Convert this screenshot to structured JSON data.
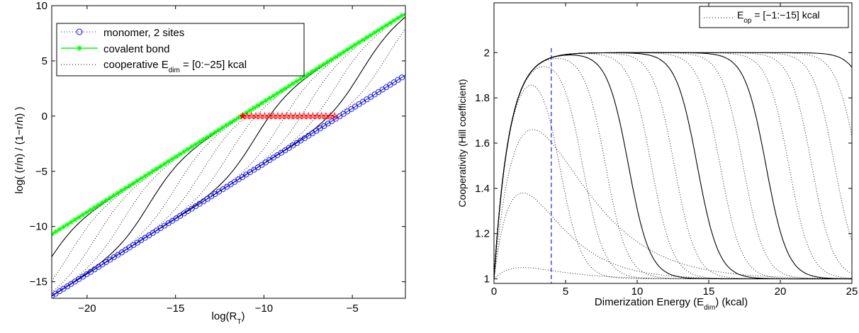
{
  "chart_data": [
    {
      "type": "line",
      "title": "",
      "xlabel_main": "log(R",
      "xlabel_sub": "T",
      "xlabel_close": ")",
      "ylabel": "log( (r/n) / (1−r/n) )",
      "xlim": [
        -22,
        -2
      ],
      "ylim": [
        -16.5,
        10
      ],
      "xticks": [
        -20,
        -15,
        -10,
        -5
      ],
      "xtick_labels": [
        "−20",
        "−15",
        "−10",
        "−5"
      ],
      "yticks": [
        10,
        5,
        0,
        -5,
        -10,
        -15
      ],
      "ytick_labels": [
        "10",
        "5",
        "0",
        "−5",
        "−10",
        "−15"
      ],
      "grid": false,
      "legend_placement": "top-left",
      "legend": [
        {
          "label": "monomer, 2 sites",
          "color": "#0000ff",
          "style": "dotted-circle"
        },
        {
          "label": "covalent bond",
          "color": "#00ff00",
          "style": "solid-star"
        },
        {
          "label_main": "cooperative E",
          "label_sub": "dim",
          "label_rest": " = [0:−25] kcal",
          "color": "#000000",
          "style": "dotted"
        }
      ],
      "series": [
        {
          "name": "monomer, 2 sites",
          "color": "#0000ff",
          "x_range": [
            -22,
            -2
          ],
          "intercept": -16.3,
          "slope": 1
        },
        {
          "name": "covalent bond",
          "color": "#00ff00",
          "x_range": [
            -22,
            -2
          ],
          "intercept": -10.7,
          "slope": 1
        }
      ],
      "cooperative_midpoints": [
        -22.5,
        -21,
        -19.5,
        -18,
        -16.5,
        -15,
        -13.5,
        -12,
        -10.5,
        -9,
        -7.5,
        -6,
        -4.5,
        -3
      ],
      "cooperative_solid_midpoints": [
        -22.5,
        -16.5,
        -10.5,
        -4.5
      ],
      "red_stars": {
        "color": "#ff0000",
        "x_from": -11.2,
        "x_to": -6,
        "y": 0,
        "count": 22
      }
    },
    {
      "type": "line",
      "title": "",
      "xlabel_main": "Dimerization Energy (E",
      "xlabel_sub": "dim",
      "xlabel_close": ") (kcal)",
      "ylabel": "Cooperativity (Hill coefficient)",
      "xlim": [
        0,
        25
      ],
      "ylim": [
        0.98,
        2.22
      ],
      "xticks": [
        0,
        5,
        10,
        15,
        20,
        25
      ],
      "xtick_labels": [
        "0",
        "5",
        "10",
        "15",
        "20",
        "25"
      ],
      "yticks": [
        1,
        1.2,
        1.4,
        1.6,
        1.8,
        2
      ],
      "ytick_labels": [
        "1",
        "1.2",
        "1.4",
        "1.6",
        "1.8",
        "2"
      ],
      "grid": false,
      "legend_placement": "top-right",
      "legend": [
        {
          "label_main": "E",
          "label_sub": "op",
          "label_rest": " = [−1:−15] kcal",
          "color": "#000000",
          "style": "dotted"
        }
      ],
      "vline": {
        "x": 4,
        "color": "#0000ff",
        "style": "dashed"
      },
      "peaked_curves": [
        {
          "peak_x": 2.0,
          "peak_y": 1.05,
          "style": "dotted"
        },
        {
          "peak_x": 2.0,
          "peak_y": 1.38,
          "style": "dotted"
        },
        {
          "peak_x": 2.7,
          "peak_y": 1.66,
          "style": "dotted"
        }
      ],
      "sigmoid_midpoints": [
        4.6,
        6.2,
        7.8,
        9.4,
        11.0,
        12.6,
        14.2,
        15.8,
        17.4,
        19.0,
        20.6,
        22.2,
        23.8,
        25.4,
        27.0
      ],
      "sigmoid_solid_midpoints": [
        9.4,
        14.2,
        19.0,
        27.0
      ]
    }
  ]
}
